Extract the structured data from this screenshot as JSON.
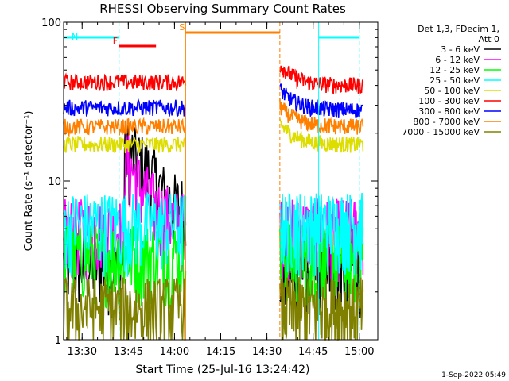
{
  "chart_data": {
    "type": "line",
    "title": "RHESSI Observing Summary Count Rates",
    "xlabel": "Start Time (25-Jul-16 13:24:42)",
    "ylabel": "Count Rate (s⁻¹ detector⁻¹)",
    "yscale": "log",
    "ylim": [
      1,
      100
    ],
    "xlim_minutes": [
      13.4,
      15.1
    ],
    "x_ticks": [
      "13:30",
      "13:45",
      "14:00",
      "14:15",
      "14:30",
      "14:45",
      "15:00"
    ],
    "y_ticks": [
      "1",
      "10",
      "100"
    ],
    "legend_header": [
      "Det 1,3, FDecim 1,",
      "Att 0"
    ],
    "timestamp": "1-Sep-2022 05:49",
    "series": [
      {
        "name": "3 - 6 keV",
        "color": "#000000",
        "pre_level": 3.0,
        "post_level": 3.0,
        "flare": [
          [
            13.73,
            16
          ],
          [
            13.85,
            12
          ],
          [
            13.95,
            8
          ],
          [
            14.02,
            7
          ]
        ]
      },
      {
        "name": "6 - 12 keV",
        "color": "#ff00ff",
        "pre_level": 5.0,
        "post_level": 5.0,
        "flare": [
          [
            13.73,
            14
          ],
          [
            13.82,
            9
          ],
          [
            13.92,
            6.5
          ],
          [
            14.02,
            5.5
          ]
        ]
      },
      {
        "name": "12 - 25 keV",
        "color": "#00ff00",
        "pre_level": 3.5,
        "post_level": 3.5
      },
      {
        "name": "25 - 50 keV",
        "color": "#00ffff",
        "pre_level": 5.5,
        "post_level": 5.5
      },
      {
        "name": "50 - 100 keV",
        "color": "#dddd00",
        "pre_level": 17,
        "post_level": 17
      },
      {
        "name": "100 - 300 keV",
        "color": "#ff0000",
        "pre_level": 42,
        "post_level": 40
      },
      {
        "name": "300 - 800 keV",
        "color": "#0000ff",
        "pre_level": 29,
        "post_level": 28
      },
      {
        "name": "800 - 7000 keV",
        "color": "#ff8000",
        "pre_level": 22,
        "post_level": 22
      },
      {
        "name": "7000 - 15000 keV",
        "color": "#808000",
        "pre_level": 1.6,
        "post_level": 1.6
      }
    ],
    "annotations": [
      {
        "label": "N",
        "color": "#00ffff",
        "x_start": 13.4,
        "x_end": 13.7
      },
      {
        "label": "F",
        "color": "#ff0000",
        "x_start": 13.7,
        "x_end": 13.9
      },
      {
        "label": "S",
        "color": "#ff8000",
        "x_start": 14.06,
        "x_end": 14.57
      },
      {
        "label": "",
        "color": "#00ffff",
        "x_start": 14.78,
        "x_end": 15.0
      }
    ],
    "vlines": [
      {
        "x": 13.7,
        "color": "#00ffff",
        "dashed": true
      },
      {
        "x": 14.06,
        "color": "#ff8000",
        "dashed": false
      },
      {
        "x": 14.57,
        "color": "#ff8000",
        "dashed": true
      },
      {
        "x": 14.78,
        "color": "#00ffff",
        "dashed": false
      },
      {
        "x": 15.0,
        "color": "#00ffff",
        "dashed": true
      }
    ],
    "gap": [
      14.06,
      14.57
    ]
  }
}
